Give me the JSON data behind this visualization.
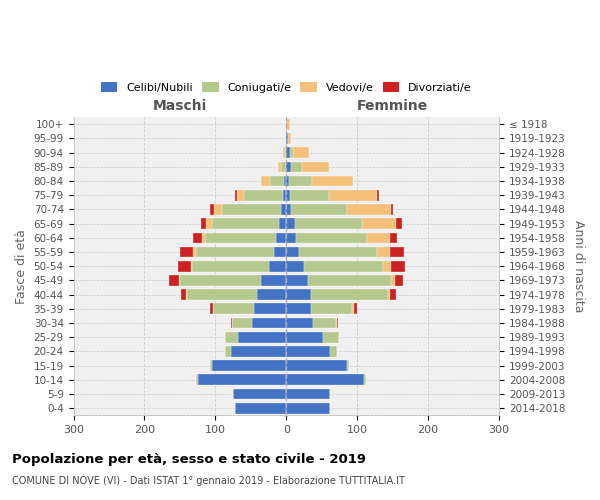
{
  "age_groups": [
    "0-4",
    "5-9",
    "10-14",
    "15-19",
    "20-24",
    "25-29",
    "30-34",
    "35-39",
    "40-44",
    "45-49",
    "50-54",
    "55-59",
    "60-64",
    "65-69",
    "70-74",
    "75-79",
    "80-84",
    "85-89",
    "90-94",
    "95-99",
    "100+"
  ],
  "birth_years": [
    "2014-2018",
    "2009-2013",
    "2004-2008",
    "1999-2003",
    "1994-1998",
    "1989-1993",
    "1984-1988",
    "1979-1983",
    "1974-1978",
    "1969-1973",
    "1964-1968",
    "1959-1963",
    "1954-1958",
    "1949-1953",
    "1944-1948",
    "1939-1943",
    "1934-1938",
    "1929-1933",
    "1924-1928",
    "1919-1923",
    "≤ 1918"
  ],
  "colors": {
    "celibi": "#4472c4",
    "coniugati": "#b5c98e",
    "vedovi": "#f5c07a",
    "divorziati": "#cc2222"
  },
  "legend_labels": [
    "Celibi/Nubili",
    "Coniugati/e",
    "Vedovi/e",
    "Divorziati/e"
  ],
  "maschi": {
    "celibi": [
      72,
      75,
      125,
      105,
      78,
      68,
      48,
      45,
      42,
      35,
      25,
      18,
      14,
      10,
      8,
      4,
      3,
      1,
      0,
      0,
      0
    ],
    "coniugati": [
      0,
      0,
      2,
      3,
      8,
      18,
      28,
      58,
      98,
      115,
      108,
      110,
      100,
      95,
      82,
      55,
      20,
      6,
      2,
      0,
      0
    ],
    "vedovi": [
      0,
      0,
      0,
      0,
      0,
      0,
      0,
      0,
      1,
      1,
      2,
      4,
      5,
      8,
      12,
      10,
      12,
      5,
      2,
      0,
      0
    ],
    "divorziati": [
      0,
      0,
      0,
      0,
      0,
      0,
      2,
      5,
      8,
      14,
      18,
      18,
      12,
      7,
      5,
      3,
      0,
      0,
      0,
      0,
      0
    ]
  },
  "femmine": {
    "nubili": [
      62,
      62,
      110,
      85,
      62,
      52,
      38,
      35,
      35,
      30,
      25,
      18,
      14,
      12,
      7,
      5,
      4,
      7,
      5,
      2,
      0
    ],
    "coniugate": [
      0,
      0,
      2,
      4,
      10,
      22,
      32,
      58,
      108,
      118,
      112,
      110,
      100,
      95,
      78,
      55,
      32,
      15,
      5,
      0,
      0
    ],
    "vedove": [
      0,
      0,
      0,
      0,
      0,
      0,
      1,
      2,
      3,
      5,
      10,
      18,
      32,
      48,
      62,
      68,
      58,
      38,
      22,
      5,
      5
    ],
    "divorziate": [
      0,
      0,
      0,
      0,
      0,
      0,
      2,
      5,
      8,
      12,
      20,
      20,
      10,
      8,
      3,
      2,
      0,
      0,
      0,
      0,
      0
    ]
  },
  "title": "Popolazione per età, sesso e stato civile - 2019",
  "subtitle": "COMUNE DI NOVE (VI) - Dati ISTAT 1° gennaio 2019 - Elaborazione TUTTITALIA.IT",
  "label_maschi": "Maschi",
  "label_femmine": "Femmine",
  "ylabel_left": "Fasce di età",
  "ylabel_right": "Anni di nascita",
  "xlim": 300,
  "bg_color": "#f0f0f0",
  "grid_color": "#cccccc",
  "bar_height": 0.75
}
